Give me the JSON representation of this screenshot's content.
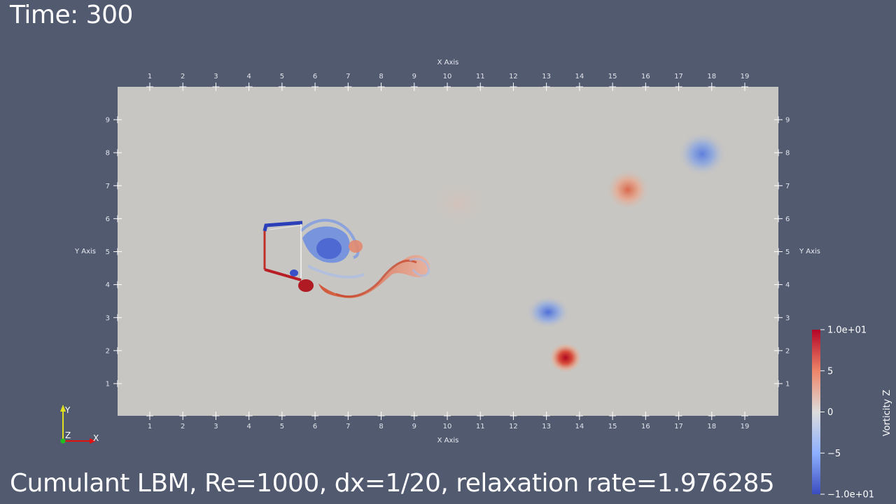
{
  "time_label": "Time: 300",
  "caption": "Cumulant LBM, Re=1000, dx=1/20, relaxation rate=1.976285",
  "axes": {
    "x_title": "X Axis",
    "y_title": "Y Axis",
    "x_ticks": [
      "1",
      "2",
      "3",
      "4",
      "5",
      "6",
      "7",
      "8",
      "9",
      "10",
      "11",
      "12",
      "13",
      "14",
      "15",
      "16",
      "17",
      "18",
      "19"
    ],
    "y_ticks": [
      "1",
      "2",
      "3",
      "4",
      "5",
      "6",
      "7",
      "8",
      "9"
    ]
  },
  "colorbar": {
    "title": "Vorticity Z",
    "labels": [
      "1.0e+01",
      "5",
      "0",
      "−5",
      "−1.0e+01"
    ],
    "max": 10,
    "min": -10,
    "color_high": "#b40426",
    "color_mid": "#dddcdc",
    "color_low": "#3b4cc0"
  },
  "orientation_triad": {
    "x": "X",
    "y": "Y",
    "z": "Z",
    "x_color": "#e01010",
    "y_color": "#e0e020",
    "z_color": "#20c020"
  },
  "colors": {
    "background": "#525a70",
    "domain": "#c8c6c2"
  }
}
